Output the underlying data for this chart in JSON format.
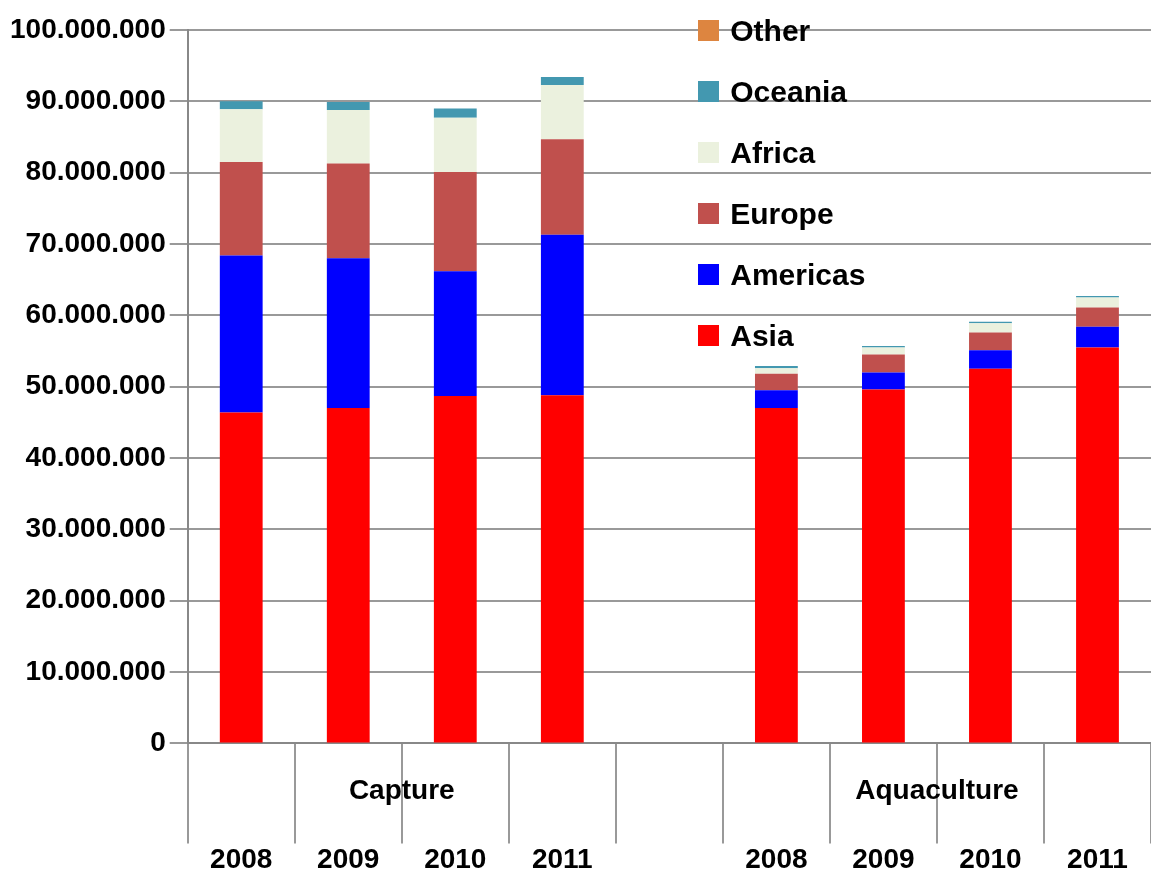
{
  "chart_data": {
    "type": "bar",
    "stacked": true,
    "categories": [
      "2008",
      "2009",
      "2010",
      "2011",
      null,
      "2008",
      "2009",
      "2010",
      "2011"
    ],
    "series": [
      {
        "name": "Asia",
        "color": "#ff0000",
        "values": [
          46400000.0,
          47000000.0,
          48700000.0,
          48800000.0,
          null,
          47000000.0,
          49600000.0,
          52500000.0,
          55500000.0
        ]
      },
      {
        "name": "Americas",
        "color": "#0000ff",
        "values": [
          22000000.0,
          21000000.0,
          17500000.0,
          22500000.0,
          null,
          2500000.0,
          2400000.0,
          2600000.0,
          2900000.0
        ]
      },
      {
        "name": "Europe",
        "color": "#c0504d",
        "values": [
          13100000.0,
          13300000.0,
          13900000.0,
          13400000.0,
          null,
          2300000.0,
          2500000.0,
          2500000.0,
          2700000.0
        ]
      },
      {
        "name": "Africa",
        "color": "#ebf1de",
        "values": [
          7400000.0,
          7500000.0,
          7600000.0,
          7600000.0,
          null,
          800000.0,
          1000000.0,
          1300000.0,
          1400000.0
        ]
      },
      {
        "name": "Oceania",
        "color": "#4398b0",
        "values": [
          1100000.0,
          1100000.0,
          1300000.0,
          1100000.0,
          null,
          300000.0,
          200000.0,
          200000.0,
          200000.0
        ]
      },
      {
        "name": "Other",
        "color": "#dd8540",
        "values": [
          0,
          0,
          0,
          0,
          null,
          0,
          0,
          0,
          0
        ]
      }
    ],
    "ylim": [
      0,
      100000000
    ],
    "yticks": [
      {
        "value": 0,
        "label": "0"
      },
      {
        "value": 10000000,
        "label": "10.000.000"
      },
      {
        "value": 20000000,
        "label": "20.000.000"
      },
      {
        "value": 30000000,
        "label": "30.000.000"
      },
      {
        "value": 40000000,
        "label": "40.000.000"
      },
      {
        "value": 50000000,
        "label": "50.000.000"
      },
      {
        "value": 60000000,
        "label": "60.000.000"
      },
      {
        "value": 70000000,
        "label": "70.000.000"
      },
      {
        "value": 80000000,
        "label": "80.000.000"
      },
      {
        "value": 90000000,
        "label": "90.000.000"
      },
      {
        "value": 100000000,
        "label": "100.000.000"
      }
    ],
    "grid": "y",
    "legend": "top right",
    "annotations": [
      "Capture",
      "Aquaculture"
    ]
  }
}
